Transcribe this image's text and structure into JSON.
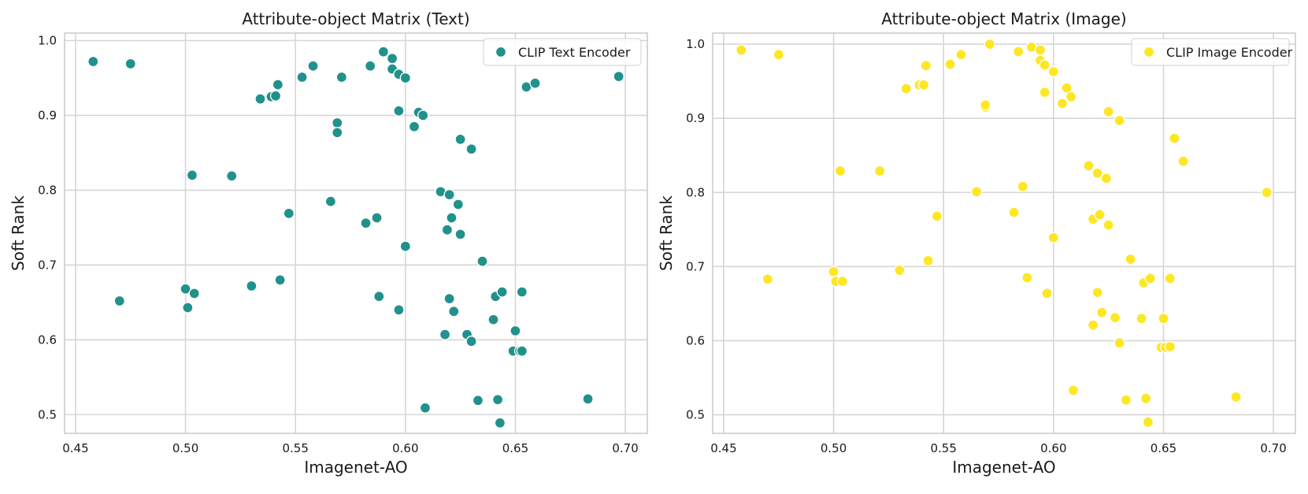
{
  "chart_data": [
    {
      "type": "scatter",
      "title": "Attribute-object Matrix (Text)",
      "xlabel": "Imagenet-AO",
      "ylabel": "Soft Rank",
      "xlim": [
        0.445,
        0.71
      ],
      "ylim": [
        0.475,
        1.01
      ],
      "xticks": [
        0.45,
        0.5,
        0.55,
        0.6,
        0.65,
        0.7
      ],
      "xtick_labels": [
        "0.45",
        "0.50",
        "0.55",
        "0.60",
        "0.65",
        "0.70"
      ],
      "yticks": [
        0.5,
        0.6,
        0.7,
        0.8,
        0.9,
        1.0
      ],
      "ytick_labels": [
        "0.5",
        "0.6",
        "0.7",
        "0.8",
        "0.9",
        "1.0"
      ],
      "grid": true,
      "legend": "top-right",
      "series": [
        {
          "name": "CLIP Text Encoder",
          "color": "#21918c",
          "points": [
            [
              0.458,
              0.972
            ],
            [
              0.475,
              0.969
            ],
            [
              0.47,
              0.652
            ],
            [
              0.5,
              0.668
            ],
            [
              0.501,
              0.643
            ],
            [
              0.503,
              0.82
            ],
            [
              0.504,
              0.662
            ],
            [
              0.521,
              0.819
            ],
            [
              0.53,
              0.672
            ],
            [
              0.534,
              0.922
            ],
            [
              0.539,
              0.925
            ],
            [
              0.541,
              0.926
            ],
            [
              0.542,
              0.941
            ],
            [
              0.543,
              0.68
            ],
            [
              0.547,
              0.769
            ],
            [
              0.553,
              0.951
            ],
            [
              0.558,
              0.966
            ],
            [
              0.566,
              0.785
            ],
            [
              0.569,
              0.89
            ],
            [
              0.569,
              0.877
            ],
            [
              0.571,
              0.951
            ],
            [
              0.582,
              0.756
            ],
            [
              0.584,
              0.966
            ],
            [
              0.587,
              0.763
            ],
            [
              0.588,
              0.658
            ],
            [
              0.59,
              0.985
            ],
            [
              0.594,
              0.962
            ],
            [
              0.594,
              0.976
            ],
            [
              0.597,
              0.955
            ],
            [
              0.597,
              0.906
            ],
            [
              0.597,
              0.64
            ],
            [
              0.6,
              0.95
            ],
            [
              0.6,
              0.725
            ],
            [
              0.604,
              0.885
            ],
            [
              0.606,
              0.904
            ],
            [
              0.608,
              0.9
            ],
            [
              0.609,
              0.509
            ],
            [
              0.616,
              0.798
            ],
            [
              0.618,
              0.607
            ],
            [
              0.619,
              0.747
            ],
            [
              0.62,
              0.794
            ],
            [
              0.62,
              0.655
            ],
            [
              0.621,
              0.763
            ],
            [
              0.622,
              0.638
            ],
            [
              0.624,
              0.781
            ],
            [
              0.625,
              0.868
            ],
            [
              0.625,
              0.741
            ],
            [
              0.628,
              0.607
            ],
            [
              0.63,
              0.855
            ],
            [
              0.63,
              0.598
            ],
            [
              0.633,
              0.519
            ],
            [
              0.635,
              0.705
            ],
            [
              0.64,
              0.627
            ],
            [
              0.641,
              0.658
            ],
            [
              0.642,
              0.52
            ],
            [
              0.643,
              0.489
            ],
            [
              0.644,
              0.664
            ],
            [
              0.649,
              0.585
            ],
            [
              0.65,
              0.612
            ],
            [
              0.652,
              0.585
            ],
            [
              0.653,
              0.585
            ],
            [
              0.653,
              0.664
            ],
            [
              0.655,
              0.938
            ],
            [
              0.659,
              0.943
            ],
            [
              0.683,
              0.521
            ],
            [
              0.697,
              0.952
            ]
          ]
        }
      ]
    },
    {
      "type": "scatter",
      "title": "Attribute-object Matrix (Image)",
      "xlabel": "Imagenet-AO",
      "ylabel": "Soft Rank",
      "xlim": [
        0.445,
        0.71
      ],
      "ylim": [
        0.475,
        1.015
      ],
      "xticks": [
        0.45,
        0.5,
        0.55,
        0.6,
        0.65,
        0.7
      ],
      "xtick_labels": [
        "0.45",
        "0.50",
        "0.55",
        "0.60",
        "0.65",
        "0.70"
      ],
      "yticks": [
        0.5,
        0.6,
        0.7,
        0.8,
        0.9,
        1.0
      ],
      "ytick_labels": [
        "0.5",
        "0.6",
        "0.7",
        "0.8",
        "0.9",
        "1.0"
      ],
      "grid": true,
      "legend": "top-right",
      "series": [
        {
          "name": "CLIP Image Encoder",
          "color": "#fde725",
          "points": [
            [
              0.458,
              0.992
            ],
            [
              0.475,
              0.986
            ],
            [
              0.47,
              0.683
            ],
            [
              0.5,
              0.693
            ],
            [
              0.501,
              0.68
            ],
            [
              0.503,
              0.829
            ],
            [
              0.504,
              0.68
            ],
            [
              0.521,
              0.829
            ],
            [
              0.53,
              0.695
            ],
            [
              0.533,
              0.94
            ],
            [
              0.539,
              0.945
            ],
            [
              0.541,
              0.945
            ],
            [
              0.542,
              0.971
            ],
            [
              0.543,
              0.708
            ],
            [
              0.547,
              0.768
            ],
            [
              0.553,
              0.973
            ],
            [
              0.558,
              0.986
            ],
            [
              0.565,
              0.801
            ],
            [
              0.569,
              0.915
            ],
            [
              0.569,
              0.918
            ],
            [
              0.571,
              1.0
            ],
            [
              0.582,
              0.773
            ],
            [
              0.584,
              0.99
            ],
            [
              0.586,
              0.808
            ],
            [
              0.588,
              0.685
            ],
            [
              0.59,
              0.996
            ],
            [
              0.594,
              0.978
            ],
            [
              0.594,
              0.992
            ],
            [
              0.596,
              0.935
            ],
            [
              0.596,
              0.972
            ],
            [
              0.597,
              0.664
            ],
            [
              0.6,
              0.963
            ],
            [
              0.6,
              0.739
            ],
            [
              0.604,
              0.92
            ],
            [
              0.606,
              0.941
            ],
            [
              0.608,
              0.929
            ],
            [
              0.609,
              0.533
            ],
            [
              0.616,
              0.836
            ],
            [
              0.618,
              0.621
            ],
            [
              0.618,
              0.764
            ],
            [
              0.62,
              0.826
            ],
            [
              0.62,
              0.665
            ],
            [
              0.621,
              0.77
            ],
            [
              0.622,
              0.638
            ],
            [
              0.624,
              0.819
            ],
            [
              0.625,
              0.909
            ],
            [
              0.625,
              0.756
            ],
            [
              0.628,
              0.631
            ],
            [
              0.63,
              0.897
            ],
            [
              0.63,
              0.597
            ],
            [
              0.633,
              0.52
            ],
            [
              0.635,
              0.71
            ],
            [
              0.64,
              0.63
            ],
            [
              0.641,
              0.678
            ],
            [
              0.642,
              0.522
            ],
            [
              0.643,
              0.49
            ],
            [
              0.644,
              0.684
            ],
            [
              0.649,
              0.591
            ],
            [
              0.65,
              0.63
            ],
            [
              0.651,
              0.591
            ],
            [
              0.653,
              0.592
            ],
            [
              0.653,
              0.684
            ],
            [
              0.655,
              0.873
            ],
            [
              0.659,
              0.842
            ],
            [
              0.683,
              0.524
            ],
            [
              0.697,
              0.8
            ]
          ]
        }
      ]
    }
  ]
}
